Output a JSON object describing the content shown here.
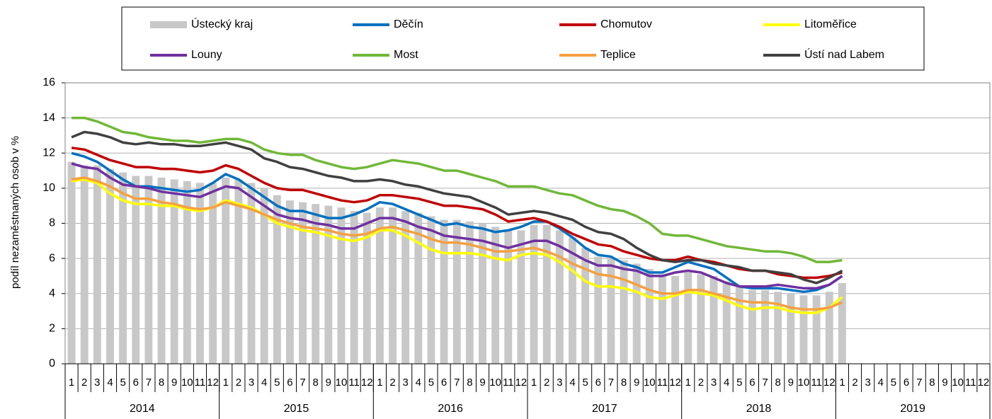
{
  "chart_data": {
    "type": "bar_line",
    "y_label": "podíl nezaměstnaných osob v %",
    "categories": [
      "1",
      "2",
      "3",
      "4",
      "5",
      "6",
      "7",
      "8",
      "9",
      "10",
      "11",
      "12",
      "1",
      "2",
      "3",
      "4",
      "5",
      "6",
      "7",
      "8",
      "9",
      "10",
      "11",
      "12",
      "1",
      "2",
      "3",
      "4",
      "5",
      "6",
      "7",
      "8",
      "9",
      "10",
      "11",
      "12",
      "1",
      "2",
      "3",
      "4",
      "5",
      "6",
      "7",
      "8",
      "9",
      "10",
      "11",
      "12",
      "1",
      "2",
      "3",
      "4",
      "5",
      "6",
      "7",
      "8",
      "9",
      "10",
      "11",
      "12",
      "1",
      "2",
      "3",
      "4",
      "5",
      "6",
      "7",
      "8",
      "9",
      "10",
      "11",
      "12"
    ],
    "years": [
      "2014",
      "2015",
      "2016",
      "2017",
      "2018",
      "2019"
    ],
    "ylim": [
      0,
      16
    ],
    "yticks": [
      0,
      2,
      4,
      6,
      8,
      10,
      12,
      14,
      16
    ],
    "grid": true,
    "series": [
      {
        "name": "Ústecký kraj",
        "kind": "bar",
        "color": "#c8c8c8",
        "values": [
          11.5,
          11.3,
          11.3,
          11.1,
          10.9,
          10.7,
          10.7,
          10.6,
          10.5,
          10.4,
          10.3,
          10.3,
          10.6,
          10.5,
          10.3,
          10.0,
          9.6,
          9.3,
          9.2,
          9.1,
          9.0,
          8.9,
          8.7,
          8.6,
          8.9,
          8.9,
          8.7,
          8.6,
          8.4,
          8.2,
          8.2,
          8.1,
          8.0,
          7.8,
          7.6,
          7.6,
          7.9,
          7.9,
          7.6,
          7.2,
          6.6,
          6.1,
          6.0,
          5.9,
          5.7,
          5.4,
          5.1,
          5.0,
          5.2,
          5.1,
          5.0,
          4.7,
          4.4,
          4.2,
          4.2,
          4.1,
          4.0,
          3.9,
          3.9,
          4.1,
          4.6,
          null,
          null,
          null,
          null,
          null,
          null,
          null,
          null,
          null,
          null,
          null
        ]
      },
      {
        "name": "Děčín",
        "kind": "line",
        "color": "#0070c0",
        "values": [
          12.0,
          11.8,
          11.5,
          11.0,
          10.5,
          10.1,
          10.1,
          10.0,
          9.9,
          9.8,
          9.9,
          10.3,
          10.8,
          10.5,
          10.0,
          9.5,
          9.0,
          8.7,
          8.7,
          8.5,
          8.3,
          8.3,
          8.5,
          8.8,
          9.2,
          9.1,
          8.8,
          8.5,
          8.2,
          7.9,
          8.0,
          7.8,
          7.7,
          7.5,
          7.6,
          7.8,
          8.1,
          8.1,
          7.7,
          7.2,
          6.6,
          6.2,
          6.1,
          5.7,
          5.5,
          5.2,
          5.2,
          5.5,
          5.8,
          5.6,
          5.4,
          4.9,
          4.4,
          4.3,
          4.3,
          4.3,
          4.2,
          4.1,
          4.2,
          4.5,
          5.0,
          null,
          null,
          null,
          null,
          null,
          null,
          null,
          null,
          null,
          null,
          null
        ]
      },
      {
        "name": "Chomutov",
        "kind": "line",
        "color": "#c00000",
        "values": [
          12.3,
          12.2,
          11.9,
          11.6,
          11.4,
          11.2,
          11.2,
          11.1,
          11.1,
          11.0,
          10.9,
          11.0,
          11.3,
          11.1,
          10.7,
          10.3,
          10.0,
          9.9,
          9.9,
          9.7,
          9.5,
          9.3,
          9.2,
          9.3,
          9.6,
          9.6,
          9.5,
          9.4,
          9.2,
          9.0,
          9.0,
          8.9,
          8.8,
          8.5,
          8.1,
          8.2,
          8.3,
          8.1,
          7.8,
          7.4,
          7.1,
          6.8,
          6.7,
          6.4,
          6.2,
          6.0,
          5.9,
          5.9,
          6.1,
          5.9,
          5.8,
          5.6,
          5.4,
          5.3,
          5.3,
          5.1,
          5.0,
          4.9,
          4.9,
          5.0,
          5.2,
          null,
          null,
          null,
          null,
          null,
          null,
          null,
          null,
          null,
          null,
          null
        ]
      },
      {
        "name": "Litoměřice",
        "kind": "line",
        "color": "#ffff00",
        "values": [
          10.4,
          10.5,
          10.3,
          9.7,
          9.3,
          9.1,
          9.1,
          9.0,
          9.0,
          8.8,
          8.7,
          8.9,
          9.3,
          9.1,
          8.9,
          8.5,
          8.0,
          7.8,
          7.6,
          7.5,
          7.3,
          7.1,
          7.0,
          7.2,
          7.6,
          7.6,
          7.3,
          6.9,
          6.5,
          6.3,
          6.3,
          6.3,
          6.2,
          6.0,
          5.9,
          6.2,
          6.3,
          6.2,
          5.8,
          5.3,
          4.7,
          4.4,
          4.4,
          4.3,
          4.1,
          3.8,
          3.7,
          3.9,
          4.1,
          4.0,
          3.9,
          3.6,
          3.3,
          3.1,
          3.2,
          3.2,
          3.0,
          2.9,
          2.9,
          3.2,
          3.8,
          null,
          null,
          null,
          null,
          null,
          null,
          null,
          null,
          null,
          null,
          null
        ]
      },
      {
        "name": "Louny",
        "kind": "line",
        "color": "#7030a0",
        "values": [
          11.4,
          11.2,
          11.1,
          10.6,
          10.2,
          10.1,
          10.0,
          9.8,
          9.7,
          9.6,
          9.5,
          9.8,
          10.1,
          10.0,
          9.5,
          9.0,
          8.5,
          8.3,
          8.2,
          8.0,
          7.9,
          7.7,
          7.7,
          8.0,
          8.3,
          8.3,
          8.1,
          7.8,
          7.6,
          7.3,
          7.2,
          7.1,
          7.0,
          6.8,
          6.6,
          6.8,
          7.0,
          7.0,
          6.7,
          6.3,
          5.9,
          5.6,
          5.6,
          5.4,
          5.3,
          5.0,
          5.0,
          5.2,
          5.3,
          5.2,
          4.9,
          4.6,
          4.4,
          4.4,
          4.4,
          4.5,
          4.4,
          4.3,
          4.3,
          4.5,
          5.0,
          null,
          null,
          null,
          null,
          null,
          null,
          null,
          null,
          null,
          null,
          null
        ]
      },
      {
        "name": "Most",
        "kind": "line",
        "color": "#70b838",
        "values": [
          14.0,
          14.0,
          13.8,
          13.5,
          13.2,
          13.1,
          12.9,
          12.8,
          12.7,
          12.7,
          12.6,
          12.7,
          12.8,
          12.8,
          12.6,
          12.2,
          12.0,
          11.9,
          11.9,
          11.6,
          11.4,
          11.2,
          11.1,
          11.2,
          11.4,
          11.6,
          11.5,
          11.4,
          11.2,
          11.0,
          11.0,
          10.8,
          10.6,
          10.4,
          10.1,
          10.1,
          10.1,
          9.9,
          9.7,
          9.6,
          9.3,
          9.0,
          8.8,
          8.7,
          8.4,
          8.0,
          7.4,
          7.3,
          7.3,
          7.1,
          6.9,
          6.7,
          6.6,
          6.5,
          6.4,
          6.4,
          6.3,
          6.1,
          5.8,
          5.8,
          5.9,
          null,
          null,
          null,
          null,
          null,
          null,
          null,
          null,
          null,
          null,
          null
        ]
      },
      {
        "name": "Teplice",
        "kind": "line",
        "color": "#f4a040",
        "values": [
          10.5,
          10.6,
          10.4,
          10.1,
          9.7,
          9.4,
          9.4,
          9.2,
          9.1,
          8.9,
          8.8,
          8.9,
          9.2,
          9.0,
          8.8,
          8.5,
          8.2,
          8.0,
          7.8,
          7.7,
          7.6,
          7.4,
          7.3,
          7.4,
          7.7,
          7.8,
          7.6,
          7.4,
          7.1,
          6.9,
          6.9,
          6.8,
          6.6,
          6.4,
          6.4,
          6.5,
          6.6,
          6.4,
          6.1,
          5.7,
          5.4,
          5.1,
          5.0,
          4.8,
          4.5,
          4.2,
          4.0,
          4.0,
          4.2,
          4.2,
          4.0,
          3.8,
          3.6,
          3.5,
          3.5,
          3.4,
          3.2,
          3.1,
          3.1,
          3.2,
          3.5,
          null,
          null,
          null,
          null,
          null,
          null,
          null,
          null,
          null,
          null,
          null
        ]
      },
      {
        "name": "Ústí nad Labem",
        "kind": "line",
        "color": "#404040",
        "values": [
          12.9,
          13.2,
          13.1,
          12.9,
          12.6,
          12.5,
          12.6,
          12.5,
          12.5,
          12.4,
          12.4,
          12.5,
          12.6,
          12.4,
          12.2,
          11.7,
          11.5,
          11.2,
          11.1,
          10.9,
          10.7,
          10.6,
          10.4,
          10.4,
          10.5,
          10.4,
          10.2,
          10.1,
          9.9,
          9.7,
          9.6,
          9.5,
          9.2,
          8.9,
          8.5,
          8.6,
          8.7,
          8.6,
          8.4,
          8.2,
          7.8,
          7.5,
          7.4,
          7.1,
          6.6,
          6.2,
          5.9,
          5.8,
          5.9,
          5.9,
          5.7,
          5.6,
          5.5,
          5.3,
          5.3,
          5.2,
          5.1,
          4.8,
          4.6,
          4.9,
          5.3,
          null,
          null,
          null,
          null,
          null,
          null,
          null,
          null,
          null,
          null,
          null
        ]
      }
    ]
  }
}
